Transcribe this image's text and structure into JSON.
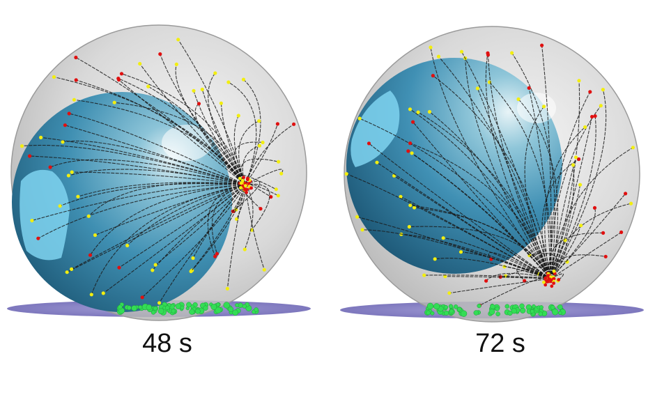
{
  "panels": [
    {
      "time_label": "48 s"
    },
    {
      "time_label": "72 s"
    }
  ],
  "colors": {
    "outer_shell": "#c8c8c8",
    "inner_sphere": "#3f93b8",
    "inner_highlight": "#7fd4f0",
    "floor_disc": "#8c86c8",
    "trajectory": "#1a1a1a",
    "marker_red": "#e01010",
    "marker_yellow": "#f2ee10",
    "particles_green": "#33dd55"
  }
}
